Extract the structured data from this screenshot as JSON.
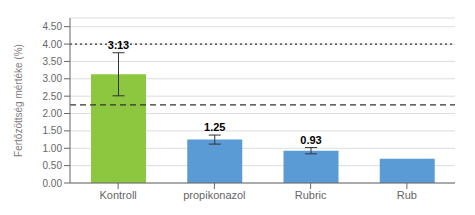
{
  "chart_data": {
    "type": "bar",
    "categories": [
      "Kontroll",
      "propikonazol",
      "Rubric",
      "Rub"
    ],
    "values": [
      3.13,
      1.25,
      0.93,
      0.7
    ],
    "value_labels": [
      "3.13",
      "1.25",
      "0.93",
      null
    ],
    "colors": [
      "#8dc63f",
      "#5b9bd5",
      "#5b9bd5",
      "#5b9bd5"
    ],
    "error_bars": [
      0.62,
      0.13,
      0.09,
      0.0
    ],
    "ylabel": "Fertőzöttség mértéke (%)",
    "ylim": [
      0.0,
      4.75
    ],
    "yticks": [
      {
        "value": 0.0,
        "label": "0.00"
      },
      {
        "value": 0.5,
        "label": "0.50"
      },
      {
        "value": 1.0,
        "label": "1.00"
      },
      {
        "value": 1.5,
        "label": "1.50"
      },
      {
        "value": 2.0,
        "label": "2.00"
      },
      {
        "value": 2.5,
        "label": "2.50"
      },
      {
        "value": 3.0,
        "label": "3.00"
      },
      {
        "value": 3.5,
        "label": "3.50"
      },
      {
        "value": 4.0,
        "label": "4.00"
      },
      {
        "value": 4.5,
        "label": "4.50"
      }
    ],
    "reference_lines": [
      {
        "y": 4.0,
        "line_style": "dotted",
        "color": "#333333"
      },
      {
        "y": 2.25,
        "line_style": "dashed",
        "color": "#333333"
      }
    ],
    "grid": true
  }
}
